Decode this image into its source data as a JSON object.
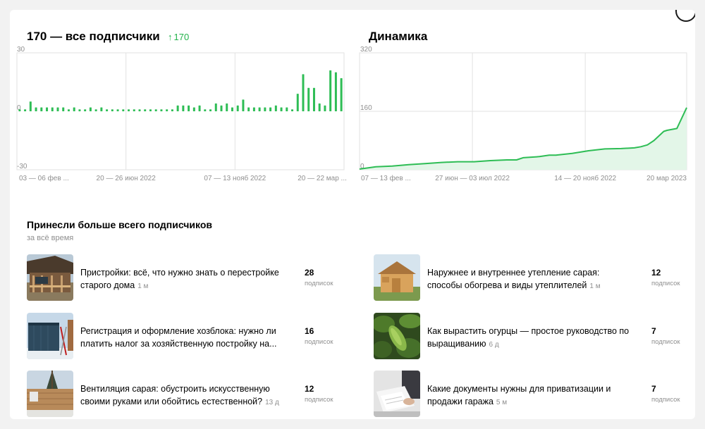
{
  "header": {
    "subscribers_title": "170 — все подписчики",
    "growth_value": "170",
    "dynamics_title": "Динамика"
  },
  "chart_data": [
    {
      "type": "bar",
      "title": "170 — все подписчики",
      "ylim": [
        -30,
        30
      ],
      "y_tick_labels": [
        "30",
        "0",
        "-30"
      ],
      "x_tick_labels": [
        "03 — 06 фев ...",
        "20 — 26 июн 2022",
        "07 — 13 нояб 2022",
        "20 — 22 мар ..."
      ],
      "values": [
        1,
        1,
        5,
        2,
        2,
        2,
        2,
        2,
        2,
        1,
        2,
        1,
        1,
        2,
        1,
        2,
        1,
        1,
        1,
        1,
        1,
        1,
        1,
        1,
        1,
        1,
        1,
        1,
        1,
        3,
        3,
        3,
        2,
        3,
        1,
        1,
        4,
        3,
        4,
        2,
        3,
        6,
        2,
        2,
        2,
        2,
        2,
        3,
        2,
        2,
        1,
        9,
        19,
        12,
        12,
        4,
        3,
        21,
        20,
        17
      ],
      "grid": true,
      "color": "#2ebd55"
    },
    {
      "type": "area",
      "title": "Динамика",
      "ylim": [
        0,
        320
      ],
      "y_tick_labels": [
        "320",
        "160",
        "0"
      ],
      "x_tick_labels": [
        "07 — 13 фев ...",
        "27 июн — 03 июл 2022",
        "14 — 20 нояб 2022",
        "20 мар 2023"
      ],
      "x": [
        0,
        0.05,
        0.1,
        0.15,
        0.2,
        0.25,
        0.3,
        0.35,
        0.4,
        0.45,
        0.48,
        0.5,
        0.55,
        0.58,
        0.6,
        0.65,
        0.7,
        0.75,
        0.8,
        0.84,
        0.86,
        0.88,
        0.9,
        0.93,
        0.94,
        0.97,
        1.0
      ],
      "values": [
        2,
        8,
        10,
        14,
        17,
        20,
        22,
        22,
        25,
        27,
        27,
        33,
        36,
        40,
        40,
        45,
        52,
        57,
        58,
        60,
        63,
        68,
        80,
        105,
        108,
        113,
        170
      ],
      "grid": true,
      "color": "#2ebd55"
    }
  ],
  "section": {
    "title": "Принесли больше всего подписчиков",
    "subtitle": "за всё время"
  },
  "articles": [
    {
      "title": "Пристройки: всё, что нужно знать о перестройке старого дома",
      "age": "1 м",
      "count": "28",
      "unit": "подписок"
    },
    {
      "title": "Наружнее и внутреннее утепление сарая: способы обогрева и виды утеплителей",
      "age": "1 м",
      "count": "12",
      "unit": "подписок"
    },
    {
      "title": "Регистрация и оформление хозблока: нужно ли платить налог за хозяйственную постройку на...",
      "age": "",
      "count": "16",
      "unit": "подписок"
    },
    {
      "title": "Как вырастить огурцы — простое руководство по выращиванию",
      "age": "6 д",
      "count": "7",
      "unit": "подписок"
    },
    {
      "title": "Вентиляция сарая: обустроить искусственную своими руками или обойтись естественной?",
      "age": "13 д",
      "count": "12",
      "unit": "подписок"
    },
    {
      "title": "Какие документы нужны для приватизации и продажи гаража",
      "age": "5 м",
      "count": "7",
      "unit": "подписок"
    }
  ]
}
